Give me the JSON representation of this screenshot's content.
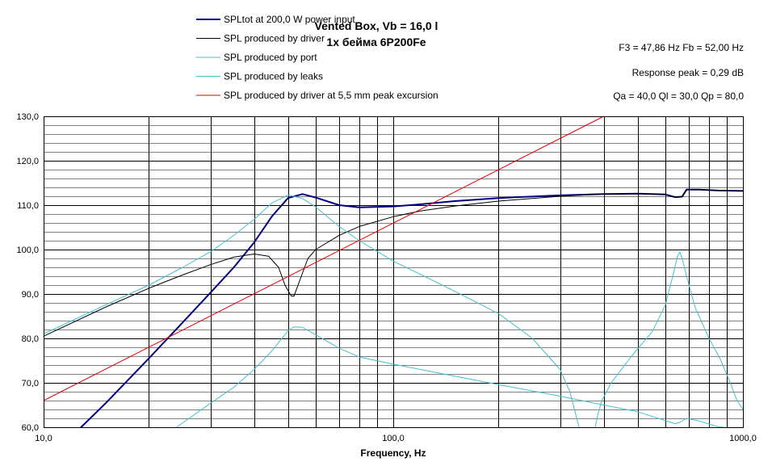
{
  "chart_data": {
    "type": "line",
    "title": "Vented Box, Vb = 16,0 l",
    "subtitle": "1x  бейма 6P200Fe",
    "info": [
      "F3 = 47,86 Hz  Fb = 52,00 Hz",
      "Response peak = 0,29 dB",
      "Qa = 40,0  Ql = 30,0  Qp = 80,0"
    ],
    "xlabel": "Frequency, Hz",
    "ylabel": "",
    "x_scale": "log",
    "xlim": [
      10,
      1000
    ],
    "ylim": [
      60,
      130
    ],
    "x_ticks": [
      10,
      100,
      1000
    ],
    "x_tick_labels": [
      "10,0",
      "100,0",
      "1000,0"
    ],
    "y_ticks": [
      60,
      70,
      80,
      90,
      100,
      110,
      120,
      130
    ],
    "y_tick_labels": [
      "60,0",
      "70,0",
      "80,0",
      "90,0",
      "100,0",
      "110,0",
      "120,0",
      "130,0"
    ],
    "grid": true,
    "legend_position": "top-left",
    "series": [
      {
        "name": "SPLtot at 200,0 W power input",
        "color": "#000080",
        "width": 2,
        "points": [
          [
            12.8,
            60
          ],
          [
            15,
            65.3
          ],
          [
            20,
            75.5
          ],
          [
            25,
            83.6
          ],
          [
            30,
            90.3
          ],
          [
            35,
            96
          ],
          [
            40,
            101.6
          ],
          [
            45,
            107.5
          ],
          [
            50,
            111.6
          ],
          [
            55,
            112.5
          ],
          [
            60,
            111.7
          ],
          [
            70,
            110
          ],
          [
            80,
            109.5
          ],
          [
            100,
            109.7
          ],
          [
            120,
            110.2
          ],
          [
            150,
            110.9
          ],
          [
            200,
            111.6
          ],
          [
            300,
            112.2
          ],
          [
            400,
            112.5
          ],
          [
            500,
            112.6
          ],
          [
            600,
            112.4
          ],
          [
            640,
            111.8
          ],
          [
            670,
            111.9
          ],
          [
            690,
            113.5
          ],
          [
            750,
            113.5
          ],
          [
            850,
            113.3
          ],
          [
            1000,
            113.2
          ]
        ]
      },
      {
        "name": "SPL produced by driver",
        "color": "#000000",
        "width": 1,
        "points": [
          [
            10,
            80.5
          ],
          [
            15,
            87
          ],
          [
            20,
            91.3
          ],
          [
            25,
            94.3
          ],
          [
            30,
            96.6
          ],
          [
            35,
            98.3
          ],
          [
            40,
            99
          ],
          [
            44,
            98.5
          ],
          [
            47,
            96
          ],
          [
            49,
            92
          ],
          [
            51,
            89.6
          ],
          [
            52,
            89.5
          ],
          [
            54,
            93
          ],
          [
            57,
            98
          ],
          [
            60,
            100
          ],
          [
            70,
            103.2
          ],
          [
            80,
            105.2
          ],
          [
            100,
            107.4
          ],
          [
            120,
            108.7
          ],
          [
            150,
            109.8
          ],
          [
            200,
            110.9
          ],
          [
            300,
            112
          ],
          [
            400,
            112.5
          ],
          [
            500,
            112.6
          ],
          [
            600,
            112.4
          ],
          [
            640,
            111.8
          ],
          [
            670,
            111.9
          ],
          [
            690,
            113.5
          ],
          [
            750,
            113.5
          ],
          [
            850,
            113.3
          ],
          [
            1000,
            113.2
          ]
        ]
      },
      {
        "name": "SPL produced by port",
        "color": "#40C0D0",
        "width": 1,
        "points": [
          [
            10,
            81
          ],
          [
            15,
            87.5
          ],
          [
            20,
            92
          ],
          [
            25,
            96
          ],
          [
            30,
            99.5
          ],
          [
            35,
            103.2
          ],
          [
            40,
            106.8
          ],
          [
            45,
            110.5
          ],
          [
            50,
            112.3
          ],
          [
            55,
            111.5
          ],
          [
            60,
            109.6
          ],
          [
            70,
            105.2
          ],
          [
            80,
            102
          ],
          [
            100,
            97.4
          ],
          [
            150,
            90.6
          ],
          [
            200,
            85.6
          ],
          [
            250,
            80
          ],
          [
            300,
            73
          ],
          [
            320,
            68
          ],
          [
            340,
            60
          ]
        ]
      },
      {
        "name": "SPL produced by leaks",
        "color": "#40C0D0",
        "width": 1,
        "points": [
          [
            24,
            60
          ],
          [
            30,
            65.4
          ],
          [
            35,
            69
          ],
          [
            40,
            73
          ],
          [
            45,
            77.2
          ],
          [
            50,
            81.7
          ],
          [
            52,
            82.6
          ],
          [
            55,
            82.5
          ],
          [
            60,
            80.8
          ],
          [
            70,
            77.8
          ],
          [
            80,
            75.8
          ],
          [
            100,
            74.2
          ],
          [
            150,
            71.5
          ],
          [
            200,
            69.6
          ],
          [
            300,
            67
          ],
          [
            400,
            65
          ],
          [
            500,
            63.5
          ],
          [
            600,
            61.5
          ],
          [
            640,
            60.8
          ],
          [
            660,
            61.1
          ],
          [
            690,
            62
          ],
          [
            750,
            61.4
          ],
          [
            850,
            60.1
          ],
          [
            880,
            60
          ]
        ]
      },
      {
        "name": "SPL produced by leaks",
        "color": "#40C0D0",
        "width": 1,
        "points": [
          [
            378,
            60
          ],
          [
            385,
            63
          ],
          [
            395,
            66
          ],
          [
            420,
            70
          ],
          [
            480,
            76
          ],
          [
            550,
            81.5
          ],
          [
            600,
            87.5
          ],
          [
            630,
            94
          ],
          [
            650,
            98.5
          ],
          [
            660,
            99.5
          ],
          [
            670,
            98
          ],
          [
            690,
            94
          ],
          [
            730,
            87
          ],
          [
            800,
            80
          ],
          [
            860,
            75.5
          ],
          [
            920,
            70
          ],
          [
            960,
            66.2
          ],
          [
            1000,
            64
          ]
        ]
      },
      {
        "name": "SPL produced by driver at 5,5 mm peak excursion",
        "color": "#E00000",
        "width": 1,
        "points": [
          [
            10,
            66
          ],
          [
            400,
            130
          ]
        ]
      }
    ],
    "legend": [
      {
        "label": "SPLtot at 200,0 W power input",
        "color": "#000080",
        "width": 2
      },
      {
        "label": "SPL produced by driver",
        "color": "#000000",
        "width": 1
      },
      {
        "label": "SPL produced by port",
        "color": "#40C0D0",
        "width": 1
      },
      {
        "label": "SPL produced by leaks",
        "color": "#40C0D0",
        "width": 1
      },
      {
        "label": "SPL produced by driver at 5,5 mm peak excursion",
        "color": "#E00000",
        "width": 1
      }
    ],
    "colors": {
      "background": "#FFFFFF",
      "grid_major": "#000000",
      "grid_minor": "#808080",
      "frame": "#000000"
    }
  }
}
